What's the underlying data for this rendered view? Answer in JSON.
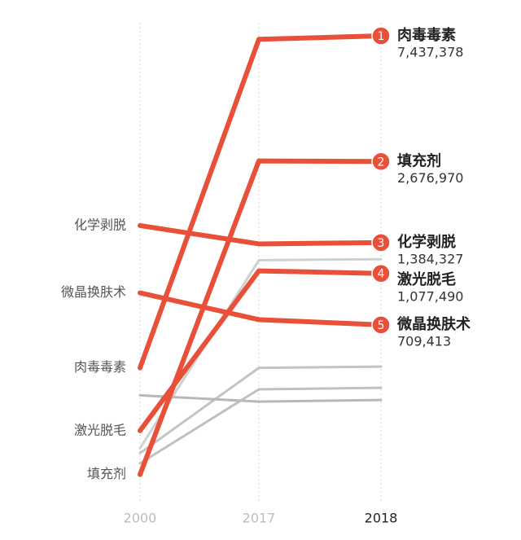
{
  "chart_data": {
    "type": "slope",
    "categories": [
      "2000",
      "2017",
      "2018"
    ],
    "category_colors": [
      "#bdbdbd",
      "#bdbdbd",
      "#222222"
    ],
    "log_scale": true,
    "ylim": [
      200000,
      8000000
    ],
    "series": [
      {
        "name": "肉毒毒素",
        "rank": 1,
        "color": "#e8503a",
        "values": [
          500000,
          7230000,
          7437378
        ],
        "value_labels": [
          null,
          null,
          "7,437,378"
        ]
      },
      {
        "name": "填充剂",
        "rank": 2,
        "color": "#e8503a",
        "values": [
          210000,
          2690000,
          2676970
        ],
        "value_labels": [
          null,
          null,
          "2,676,970"
        ]
      },
      {
        "name": "化学剥脱",
        "rank": 3,
        "color": "#e8503a",
        "values": [
          1590000,
          1370000,
          1384327
        ],
        "value_labels": [
          null,
          null,
          "1,384,327"
        ]
      },
      {
        "name": "激光脱毛",
        "rank": 4,
        "color": "#e8503a",
        "values": [
          300000,
          1100000,
          1077490
        ],
        "value_labels": [
          null,
          null,
          "1,077,490"
        ]
      },
      {
        "name": "微晶换肤术",
        "rank": 5,
        "color": "#e8503a",
        "values": [
          920000,
          740000,
          709413
        ],
        "value_labels": [
          null,
          null,
          "709,413"
        ]
      }
    ],
    "background_series": [
      {
        "color": "#d0d0d0",
        "values": [
          260000,
          1200000,
          1210000
        ]
      },
      {
        "color": "#c4c4c4",
        "values": [
          250000,
          500000,
          505000
        ]
      },
      {
        "color": "#b8b8b8",
        "values": [
          400000,
          380000,
          385000
        ]
      },
      {
        "color": "#c0c0c0",
        "values": [
          230000,
          420000,
          425000
        ]
      }
    ]
  }
}
